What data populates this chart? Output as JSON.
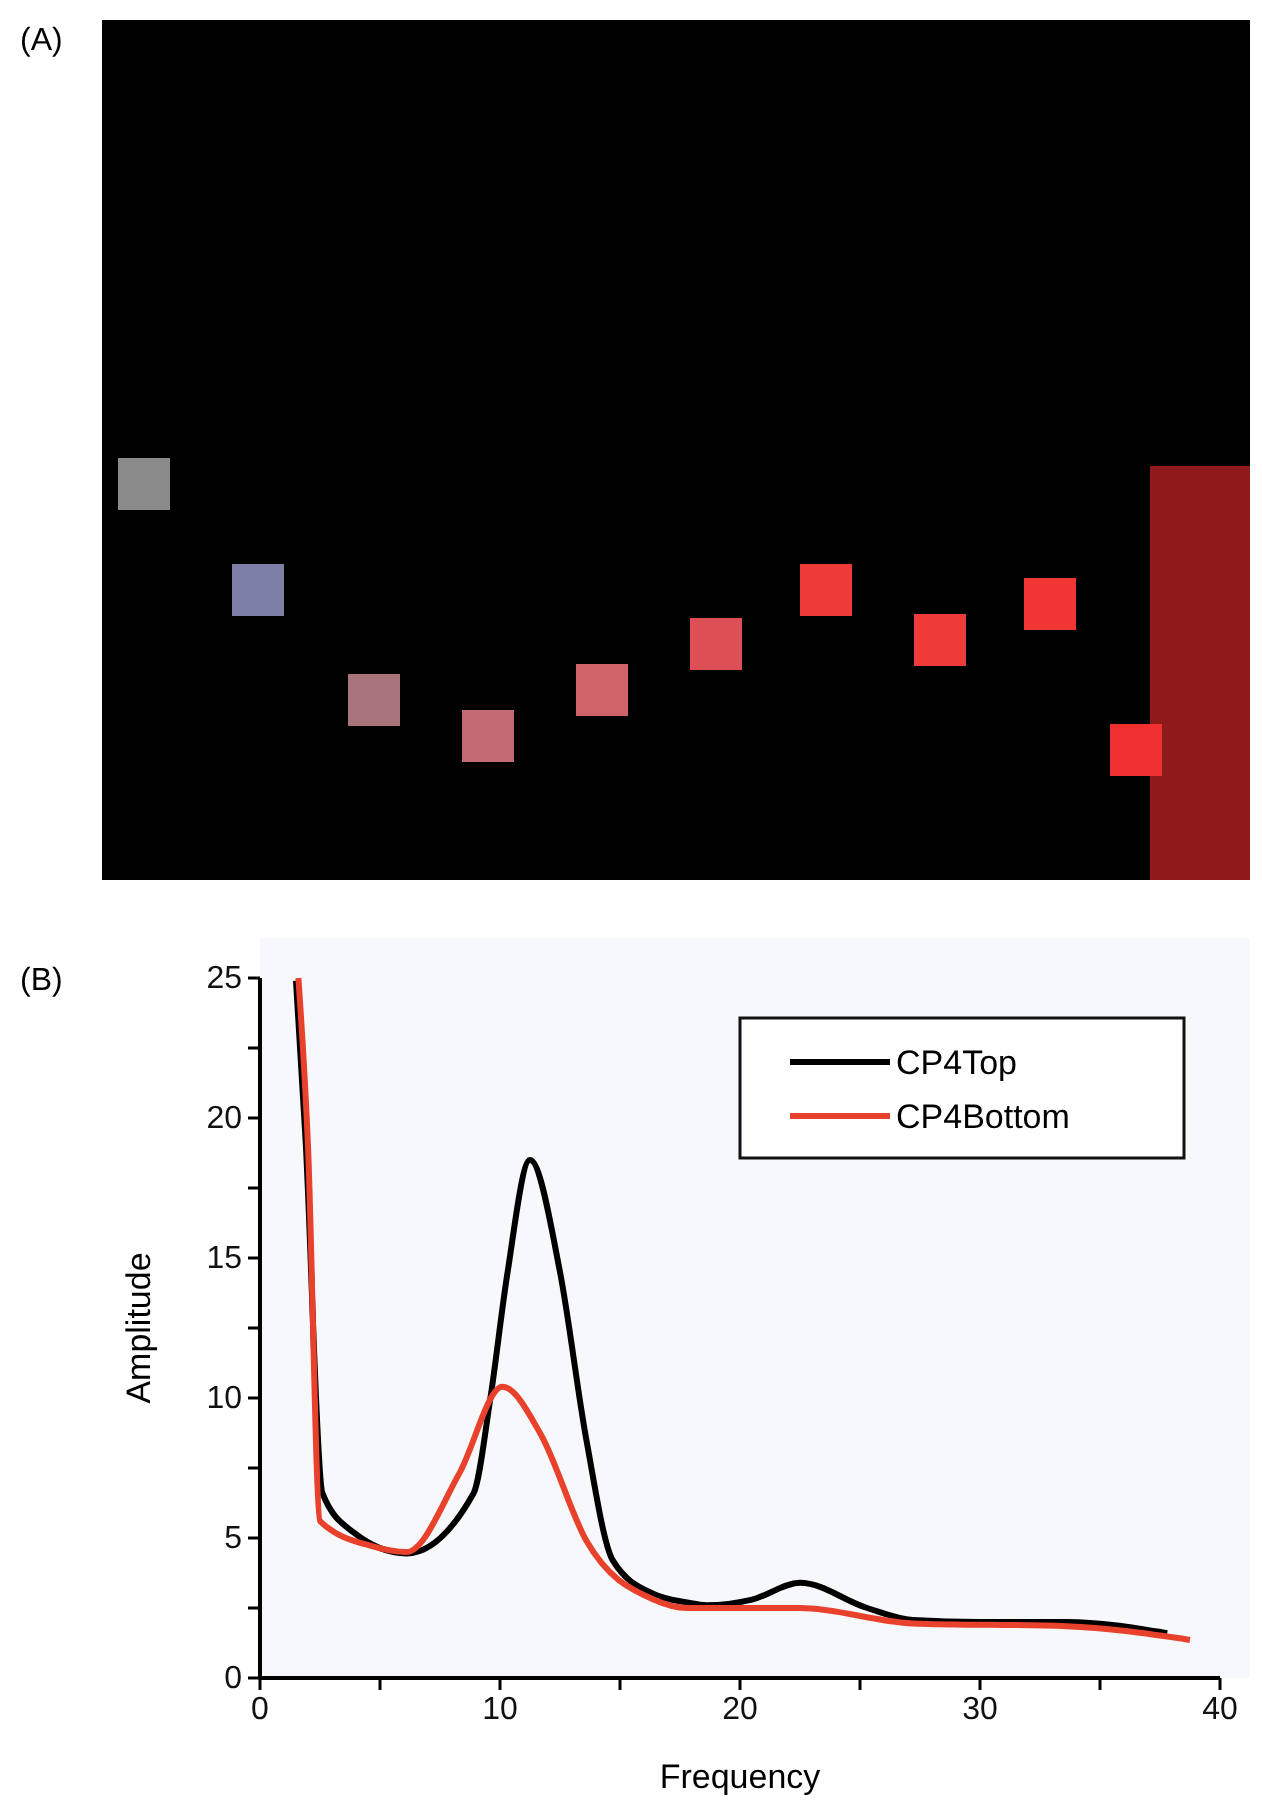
{
  "chart_data": {
    "type": "line",
    "xlabel": "Frequency",
    "ylabel": "Amplitude",
    "annotations": [
      "(A)",
      "(B)"
    ],
    "xlim": [
      0,
      40
    ],
    "ylim": [
      0,
      25
    ],
    "xticks": [
      0,
      {
        "value": 5,
        "label": null
      },
      10,
      {
        "value": 15,
        "label": null
      },
      20,
      {
        "value": 25,
        "label": null
      },
      30,
      {
        "value": 35,
        "label": null
      },
      40
    ],
    "yticks": [
      0,
      {
        "value": 2.5,
        "label": null
      },
      5,
      {
        "value": 7.5,
        "label": null
      },
      10,
      {
        "value": 12.5,
        "label": null
      },
      15,
      {
        "value": 17.5,
        "label": null
      },
      20,
      {
        "value": 22.5,
        "label": null
      },
      25
    ],
    "legend": "top right",
    "grid": false,
    "marker": "none",
    "line_style": "solid",
    "series": [
      {
        "name": "CP4Top",
        "color": "#000000",
        "x": [
          1.5,
          1.9,
          2.6,
          3.9,
          6.1,
          8.9,
          9.6,
          10.3,
          11.25,
          12.5,
          13.6,
          14.7,
          16.4,
          17.8,
          18.6,
          20.5,
          22.5,
          25.3,
          27.2,
          30,
          33.6,
          37.8
        ],
        "values": [
          24.9,
          19.2,
          6.6,
          5.2,
          4.45,
          6.6,
          10,
          14.4,
          18.5,
          14.5,
          8.5,
          4.2,
          3.0,
          2.7,
          2.6,
          2.8,
          3.4,
          2.5,
          2.07,
          2.0,
          2.0,
          1.6
        ]
      },
      {
        "name": "CP4Bottom",
        "color": "#e8412c",
        "x": [
          1.6,
          2.0,
          2.5,
          4.7,
          6.1,
          8.3,
          10.1,
          11.7,
          13.6,
          16.4,
          17.8,
          22.5,
          27.2,
          33.6,
          38.75
        ],
        "values": [
          25,
          19,
          5.6,
          4.7,
          4.5,
          7.3,
          10.4,
          8.7,
          4.9,
          2.8,
          2.5,
          2.5,
          1.95,
          1.85,
          1.36
        ]
      }
    ]
  }
}
